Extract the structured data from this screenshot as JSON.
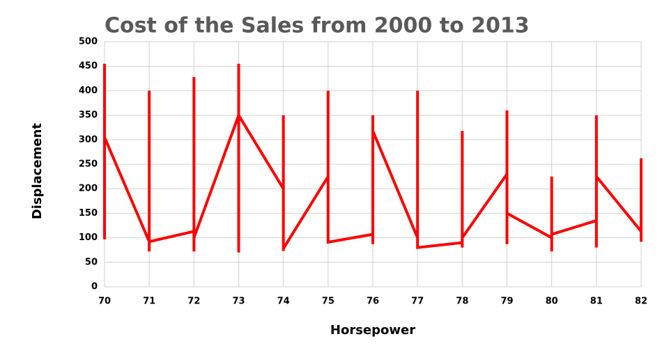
{
  "chart_data": {
    "type": "line",
    "title": "Cost of the Sales from 2000 to 2013",
    "x_label": "Horsepower",
    "y_label": "Displacement",
    "x": [
      70,
      70,
      70,
      71,
      71,
      71,
      71,
      72,
      72,
      72,
      72,
      73,
      73,
      73,
      73,
      74,
      74,
      74,
      74,
      75,
      75,
      75,
      76,
      76,
      76,
      76,
      77,
      77,
      77,
      78,
      78,
      78,
      78,
      79,
      79,
      79,
      79,
      80,
      80,
      80,
      80,
      81,
      81,
      81,
      81,
      82,
      82,
      82
    ],
    "series": [
      {
        "name": "Displacement",
        "color": "#ff0000",
        "values": [
          97,
          455,
          305,
          92,
          400,
          72,
          92,
          113,
          428,
          72,
          100,
          350,
          455,
          70,
          350,
          200,
          350,
          73,
          78,
          225,
          400,
          91,
          107,
          87,
          350,
          318,
          100,
          400,
          80,
          90,
          318,
          80,
          100,
          230,
          360,
          87,
          150,
          100,
          225,
          72,
          107,
          135,
          80,
          350,
          225,
          113,
          262,
          92
        ]
      }
    ],
    "xlim": [
      70,
      82
    ],
    "xticks": [
      70,
      71,
      72,
      73,
      74,
      75,
      76,
      77,
      78,
      79,
      80,
      81,
      82
    ],
    "ylim": [
      0,
      500
    ],
    "yticks": [
      0,
      50,
      100,
      150,
      200,
      250,
      300,
      350,
      400,
      450,
      500
    ],
    "grid": true
  }
}
